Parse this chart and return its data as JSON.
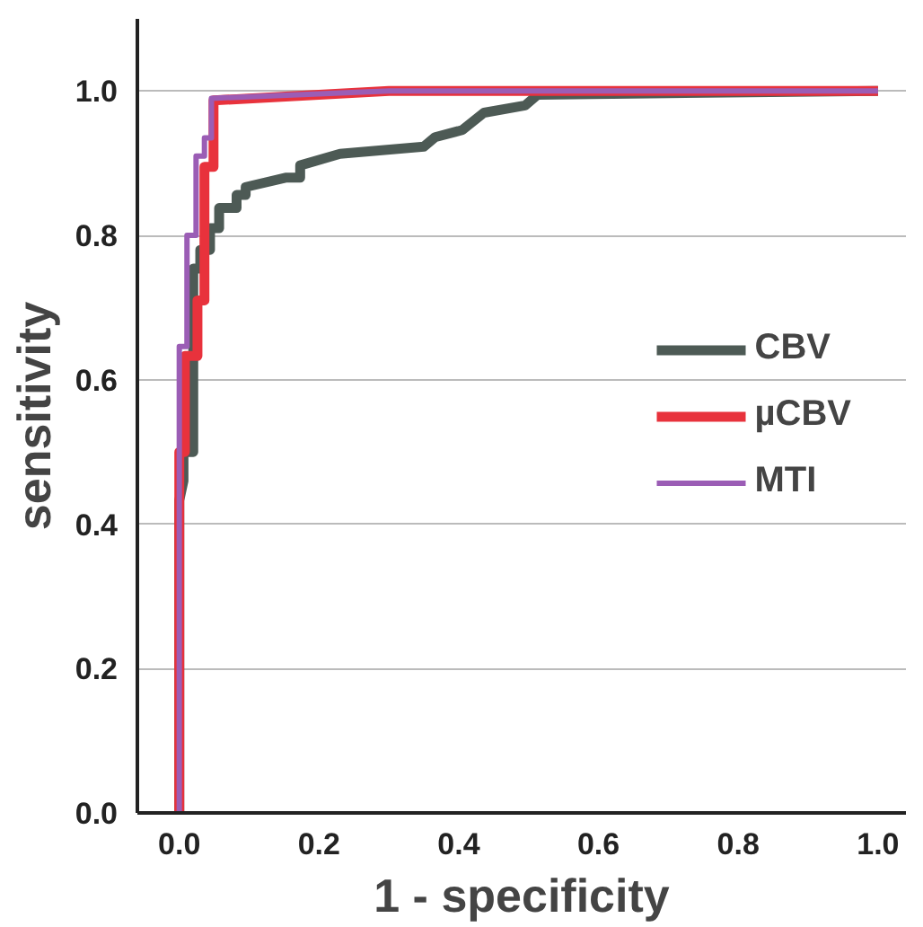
{
  "chart_data": {
    "type": "line",
    "xlabel": "1 - specificity",
    "ylabel": "sensitivity",
    "xlim": [
      -0.06,
      1.04
    ],
    "ylim": [
      0,
      1.1
    ],
    "xticks": [
      {
        "value": 0,
        "label": "0.0"
      },
      {
        "value": 0.2,
        "label": "0.2"
      },
      {
        "value": 0.4,
        "label": "0.4"
      },
      {
        "value": 0.6,
        "label": "0.6"
      },
      {
        "value": 0.8,
        "label": "0.8"
      },
      {
        "value": 1,
        "label": "1.0"
      }
    ],
    "yticks": [
      {
        "value": 0,
        "label": "0.0"
      },
      {
        "value": 0.2,
        "label": "0.2"
      },
      {
        "value": 0.4,
        "label": "0.4"
      },
      {
        "value": 0.6,
        "label": "0.6"
      },
      {
        "value": 0.8,
        "label": "0.8"
      },
      {
        "value": 1,
        "label": "1.0"
      }
    ],
    "grid": "y",
    "legend": "right",
    "line_style": "solid",
    "series": [
      {
        "name": "CBV",
        "color": "#4d5a55",
        "x": [
          0,
          0,
          0.006,
          0.006,
          0.02,
          0.02,
          0.03,
          0.03,
          0.044,
          0.044,
          0.057,
          0.057,
          0.082,
          0.082,
          0.095,
          0.095,
          0.152,
          0.173,
          0.173,
          0.23,
          0.35,
          0.366,
          0.405,
          0.436,
          0.495,
          0.513,
          0.7,
          1.0
        ],
        "values": [
          0,
          0.433,
          0.46,
          0.5,
          0.5,
          0.754,
          0.754,
          0.78,
          0.78,
          0.81,
          0.81,
          0.838,
          0.838,
          0.856,
          0.856,
          0.867,
          0.88,
          0.88,
          0.897,
          0.913,
          0.923,
          0.936,
          0.946,
          0.97,
          0.98,
          0.995,
          0.997,
          1.0
        ]
      },
      {
        "name": "µCBV",
        "color": "#e8323c",
        "x": [
          0,
          0,
          0.008,
          0.008,
          0.026,
          0.026,
          0.036,
          0.036,
          0.049,
          0.049,
          0.3,
          1.0
        ],
        "values": [
          0,
          0.5,
          0.5,
          0.633,
          0.633,
          0.71,
          0.71,
          0.895,
          0.895,
          0.987,
          1.0,
          1.0
        ]
      },
      {
        "name": "MTI",
        "color": "#9b5db5",
        "x": [
          0,
          0,
          0.011,
          0.011,
          0.024,
          0.024,
          0.036,
          0.036,
          0.046,
          0.046,
          0.3,
          1.0
        ],
        "values": [
          0,
          0.646,
          0.646,
          0.8,
          0.8,
          0.91,
          0.91,
          0.935,
          0.935,
          0.99,
          1.0,
          1.0
        ]
      }
    ]
  }
}
